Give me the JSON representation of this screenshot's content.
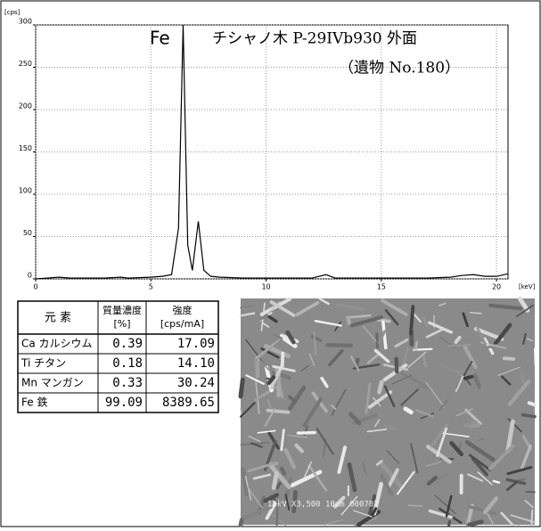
{
  "chart_data": {
    "type": "line",
    "y_unit": "[cps]",
    "x_unit": "[keV]",
    "annotations": [
      "Fe",
      "チシャノ木 P-29IVb930 外面",
      "（遺物 No.180）"
    ],
    "x": [
      0,
      0.5,
      1,
      1.5,
      2,
      3,
      3.7,
      4,
      5,
      5.5,
      5.9,
      6.2,
      6.4,
      6.6,
      6.8,
      7.06,
      7.3,
      7.6,
      8,
      9,
      10,
      11,
      12,
      12.6,
      13,
      14,
      15,
      16,
      17,
      18,
      18.5,
      19,
      19.5,
      20,
      20.5
    ],
    "values": [
      0,
      1,
      2,
      1,
      1,
      1,
      2,
      1,
      2,
      3,
      5,
      60,
      300,
      40,
      10,
      68,
      10,
      3,
      2,
      1,
      1,
      1,
      1,
      5,
      1,
      1,
      1,
      1,
      1,
      2,
      4,
      5,
      3,
      3,
      6
    ],
    "color": "#000000",
    "xlim": [
      0,
      20.5
    ],
    "xticks": [
      0,
      5,
      10,
      15,
      20
    ],
    "ylim": [
      0,
      300
    ],
    "yticks": [
      0,
      50,
      100,
      150,
      200,
      250,
      300
    ],
    "grid": true
  },
  "table": {
    "header": [
      [
        "元 素"
      ],
      [
        "質量濃度",
        "[%]"
      ],
      [
        "強度",
        "[cps/mA]"
      ]
    ],
    "rows": [
      [
        "Ca カルシウム",
        "0.39",
        "17.09"
      ],
      [
        "Ti チタン",
        "0.18",
        "14.10"
      ],
      [
        "Mn マンガン",
        "0.33",
        "30.24"
      ],
      [
        "Fe 鉄",
        "99.09",
        "8389.65"
      ]
    ]
  },
  "image": {
    "caption": "15kV X3,500 10μm 000707"
  }
}
